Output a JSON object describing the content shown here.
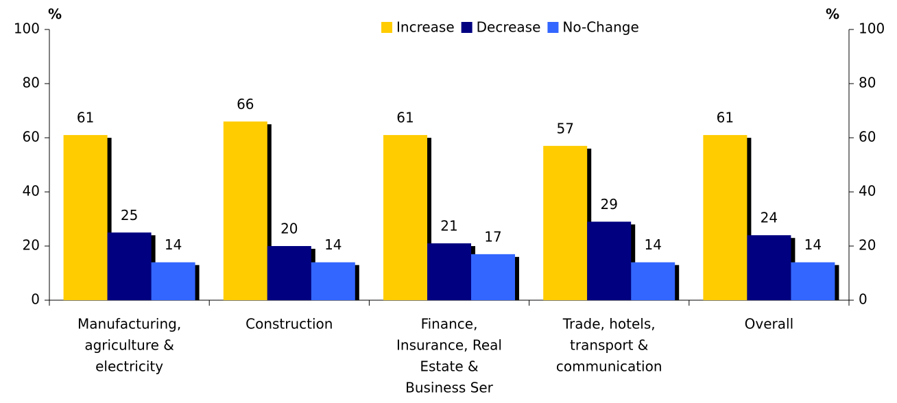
{
  "chart_data": {
    "type": "bar",
    "ylabel": "%",
    "y2label": "%",
    "categories": [
      [
        "Manufacturing,",
        "agriculture &",
        "electricity"
      ],
      [
        "Construction"
      ],
      [
        "Finance,",
        "Insurance, Real",
        "Estate &",
        "Business Ser"
      ],
      [
        "Trade, hotels,",
        "transport &",
        "communication"
      ],
      [
        "Overall"
      ]
    ],
    "series": [
      {
        "name": "Increase",
        "color": "#ffcc00",
        "values": [
          61,
          66,
          61,
          57,
          61
        ]
      },
      {
        "name": "Decrease",
        "color": "#000080",
        "values": [
          25,
          20,
          21,
          29,
          24
        ]
      },
      {
        "name": "No-Change",
        "color": "#3366ff",
        "values": [
          14,
          14,
          17,
          14,
          14
        ]
      }
    ],
    "ylim": [
      0,
      100
    ],
    "yticks": [
      0,
      20,
      40,
      60,
      80,
      100
    ],
    "y2lim": [
      0,
      100
    ],
    "y2ticks": [
      0,
      20,
      40,
      60,
      80,
      100
    ],
    "grid": false,
    "legend": "top",
    "shadow": true
  }
}
